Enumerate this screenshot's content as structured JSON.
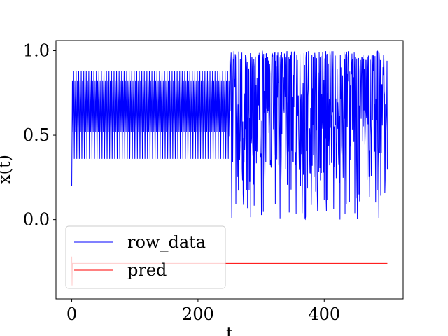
{
  "chart_data": {
    "type": "line",
    "title": "",
    "xlabel": "t",
    "ylabel": "x(t)",
    "xlim": [
      -25,
      525
    ],
    "ylim": [
      -0.47,
      1.06
    ],
    "xticks": [
      0,
      200,
      400
    ],
    "xtick_labels": [
      "0",
      "200",
      "400"
    ],
    "yticks": [
      0.0,
      0.5,
      1.0
    ],
    "ytick_labels": [
      "0.0",
      "0.5",
      "1.0"
    ],
    "grid": false,
    "legend_position": "lower-left",
    "series": [
      {
        "name": "row_data",
        "color": "#0000ff",
        "description_points": {
          "start": [
            0,
            0.2
          ],
          "segment1": {
            "t_range": [
              0,
              250
            ],
            "period": 2,
            "upper_values": [
              0.82,
              0.88
            ],
            "lower_values": [
              0.52,
              0.36
            ]
          },
          "segment2": {
            "t_range": [
              250,
              500
            ],
            "min": 0.0,
            "max": 1.0
          }
        }
      },
      {
        "name": "pred",
        "color": "#ff0000",
        "points": [
          [
            0,
            -0.22
          ],
          [
            0.5,
            -0.39
          ],
          [
            1,
            -0.26
          ],
          [
            500,
            -0.26
          ]
        ]
      }
    ]
  }
}
